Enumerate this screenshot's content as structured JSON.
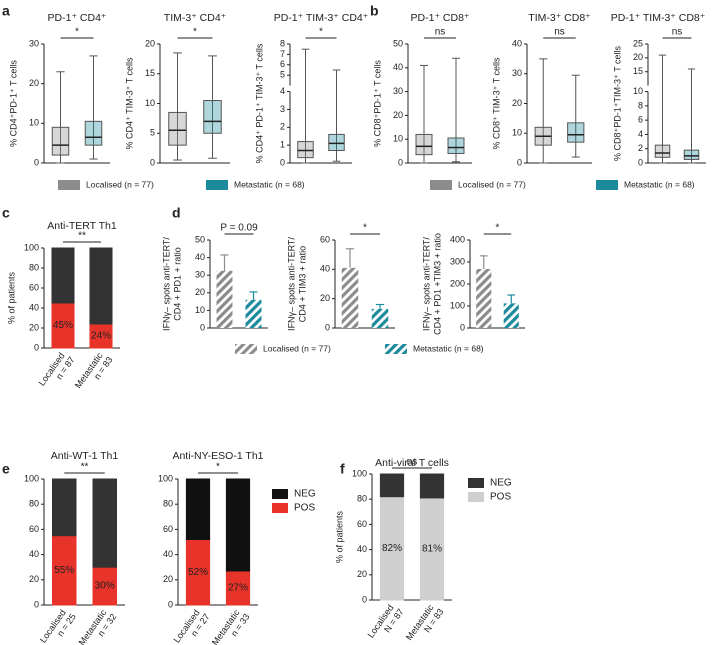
{
  "chart_data": [
    {
      "type": "box",
      "panel": "a",
      "title": "PD-1⁺ CD4⁺",
      "y_label": "% CD4⁺PD-1⁺ T cells",
      "annotation": "*",
      "ylim": [
        0,
        30
      ],
      "yticks": [
        0,
        10,
        20,
        30
      ],
      "legend": true,
      "series": [
        {
          "name": "Localised (n = 77)",
          "color": "#8c8c8c",
          "box": [
            0,
            2,
            4.5,
            9,
            23
          ]
        },
        {
          "name": "Metastatic (n = 68)",
          "color": "#1a8a9c",
          "box": [
            1,
            4.5,
            6.5,
            10.5,
            27
          ]
        }
      ]
    },
    {
      "type": "box",
      "title": "TIM-3⁺ CD4⁺",
      "y_label": "% CD4⁺ TIM-3⁺ T cells",
      "annotation": "*",
      "ylim": [
        0,
        20
      ],
      "yticks": [
        0,
        5,
        10,
        15,
        20
      ],
      "series": [
        {
          "color": "#8c8c8c",
          "box": [
            0.5,
            3,
            5.5,
            8.5,
            18.5
          ]
        },
        {
          "color": "#1a8a9c",
          "box": [
            0.8,
            5,
            7,
            10.5,
            18
          ]
        }
      ]
    },
    {
      "type": "box",
      "title": "PD-1⁺ TIM-3⁺ CD4⁺",
      "y_label": "% CD4⁺ PD-1⁺ TIM-3⁺ T cells",
      "annotation": "*",
      "ylim": [
        0,
        8
      ],
      "ybreak": 4,
      "yticks": [
        0,
        1,
        2,
        3,
        4,
        5,
        6,
        7,
        8
      ],
      "series": [
        {
          "color": "#8c8c8c",
          "box": [
            0,
            0.3,
            0.7,
            1.2,
            7.5
          ]
        },
        {
          "color": "#1a8a9c",
          "box": [
            0.1,
            0.7,
            1.1,
            1.6,
            5.5
          ]
        }
      ]
    },
    {
      "type": "box",
      "panel": "b",
      "title": "PD-1⁺ CD8⁺",
      "y_label": "% CD8⁺PD-1⁺ T cells",
      "annotation": "ns",
      "ylim": [
        0,
        50
      ],
      "yticks": [
        0,
        10,
        20,
        30,
        40,
        50
      ],
      "legend": true,
      "series": [
        {
          "name": "Localised (n = 77)",
          "color": "#8c8c8c",
          "box": [
            0,
            3.5,
            7,
            12,
            41
          ]
        },
        {
          "name": "Metastatic (n = 68)",
          "color": "#1a8a9c",
          "box": [
            0.5,
            4,
            6.5,
            10.5,
            44
          ]
        }
      ]
    },
    {
      "type": "box",
      "title": "TIM-3⁺ CD8⁺",
      "y_label": "% CD8⁺ TIM-3⁺ T cells",
      "annotation": "ns",
      "ylim": [
        0,
        40
      ],
      "yticks": [
        0,
        10,
        20,
        30,
        40
      ],
      "series": [
        {
          "color": "#8c8c8c",
          "box": [
            0,
            6,
            9,
            12,
            35
          ]
        },
        {
          "color": "#1a8a9c",
          "box": [
            2,
            7,
            9.5,
            13.5,
            29.5
          ]
        }
      ]
    },
    {
      "type": "box",
      "title": "PD-1⁺ TIM-3⁺ CD8⁺",
      "y_label": "% CD8⁺PD-1⁺TIM-3⁺ T cells",
      "annotation": "ns",
      "ylim": [
        0,
        25
      ],
      "ybreak": 10,
      "yticks": [
        0,
        2,
        4,
        6,
        8,
        10,
        15,
        20,
        25
      ],
      "series": [
        {
          "color": "#8c8c8c",
          "box": [
            0,
            0.8,
            1.4,
            2.5,
            21
          ]
        },
        {
          "color": "#1a8a9c",
          "box": [
            0,
            0.5,
            1,
            1.8,
            16
          ]
        }
      ]
    },
    {
      "type": "stacked_bar",
      "panel": "c",
      "title": "Anti-TERT Th1",
      "y_label": "% of patients",
      "annotation": "**",
      "ylim": [
        0,
        100
      ],
      "yticks": [
        0,
        20,
        40,
        60,
        80,
        100
      ],
      "categories": [
        "Localised",
        "Metastatic"
      ],
      "category_n": [
        "n = 87",
        "n = 83"
      ],
      "series": [
        {
          "color": "#e8332a",
          "values": [
            45,
            24
          ],
          "value_labels": [
            "45%",
            "24%"
          ]
        },
        {
          "color": "#333333",
          "values": [
            55,
            76
          ]
        }
      ]
    },
    {
      "type": "bar",
      "panel": "d",
      "y_label": [
        "IFNγ– spots anti-TERT/",
        "CD4 + PD1 + ratio"
      ],
      "annotation": "P = 0.09",
      "ylim": [
        0,
        50
      ],
      "yticks": [
        0,
        10,
        20,
        30,
        40,
        50
      ],
      "legend": true,
      "series": [
        {
          "name": "Localised (n = 77)",
          "color": "#8c8c8c",
          "values": [
            32.5
          ],
          "errors": [
            9
          ]
        },
        {
          "name": "Metastatic (n = 68)",
          "color": "#1a8a9c",
          "values": [
            16
          ],
          "errors": [
            4.5
          ]
        }
      ]
    },
    {
      "type": "bar",
      "y_label": [
        "IFNγ– spots anti-TERT/",
        "CD4 + TIM3 + ratio"
      ],
      "annotation": "*",
      "ylim": [
        0,
        60
      ],
      "yticks": [
        0,
        20,
        40,
        60
      ],
      "series": [
        {
          "color": "#8c8c8c",
          "values": [
            41
          ],
          "errors": [
            13
          ]
        },
        {
          "color": "#1a8a9c",
          "values": [
            13
          ],
          "errors": [
            3
          ]
        }
      ]
    },
    {
      "type": "bar",
      "y_label": [
        "IFNγ– spots anti-TERT/",
        "CD4 + PD1 +TIM3 + ratio"
      ],
      "annotation": "*",
      "ylim": [
        0,
        400
      ],
      "yticks": [
        0,
        100,
        200,
        300,
        400
      ],
      "series": [
        {
          "color": "#8c8c8c",
          "values": [
            268
          ],
          "errors": [
            60
          ]
        },
        {
          "color": "#1a8a9c",
          "values": [
            112
          ],
          "errors": [
            38
          ]
        }
      ]
    },
    {
      "type": "stacked_bar",
      "panel": "e",
      "title": "Anti-WT-1 Th1",
      "annotation": "**",
      "ylim": [
        0,
        100
      ],
      "yticks": [
        0,
        20,
        40,
        60,
        80,
        100
      ],
      "categories": [
        "Localised",
        "Metastatic"
      ],
      "category_n": [
        "n = 25",
        "n = 32"
      ],
      "series": [
        {
          "color": "#e8332a",
          "values": [
            55,
            30
          ],
          "value_labels": [
            "55%",
            "30%"
          ]
        },
        {
          "color": "#333333",
          "values": [
            45,
            70
          ]
        }
      ]
    },
    {
      "type": "stacked_bar",
      "title": "Anti-NY-ESO-1 Th1",
      "annotation": "*",
      "ylim": [
        0,
        100
      ],
      "yticks": [
        0,
        20,
        40,
        60,
        80,
        100
      ],
      "legend": true,
      "categories": [
        "Localised",
        "Metastatic"
      ],
      "category_n": [
        "n = 27",
        "n = 33"
      ],
      "series": [
        {
          "name": "POS",
          "color": "#e8332a",
          "values": [
            52,
            27
          ],
          "value_labels": [
            "52%",
            "27%"
          ]
        },
        {
          "name": "NEG",
          "color": "#111111",
          "values": [
            48,
            73
          ]
        }
      ]
    },
    {
      "type": "stacked_bar",
      "panel": "f",
      "title": "Anti-viral T cells",
      "y_label": "% of patients",
      "annotation": "ns",
      "ylim": [
        0,
        100
      ],
      "yticks": [
        0,
        20,
        40,
        60,
        80,
        100
      ],
      "legend": true,
      "categories": [
        "Localised",
        "Metastatic"
      ],
      "category_n": [
        "N = 87",
        "N = 83"
      ],
      "series": [
        {
          "name": "POS",
          "color": "#cfcfcf",
          "values": [
            82,
            81
          ],
          "value_labels": [
            "82%",
            "81%"
          ]
        },
        {
          "name": "NEG",
          "color": "#333333",
          "values": [
            18,
            19
          ]
        }
      ]
    }
  ]
}
